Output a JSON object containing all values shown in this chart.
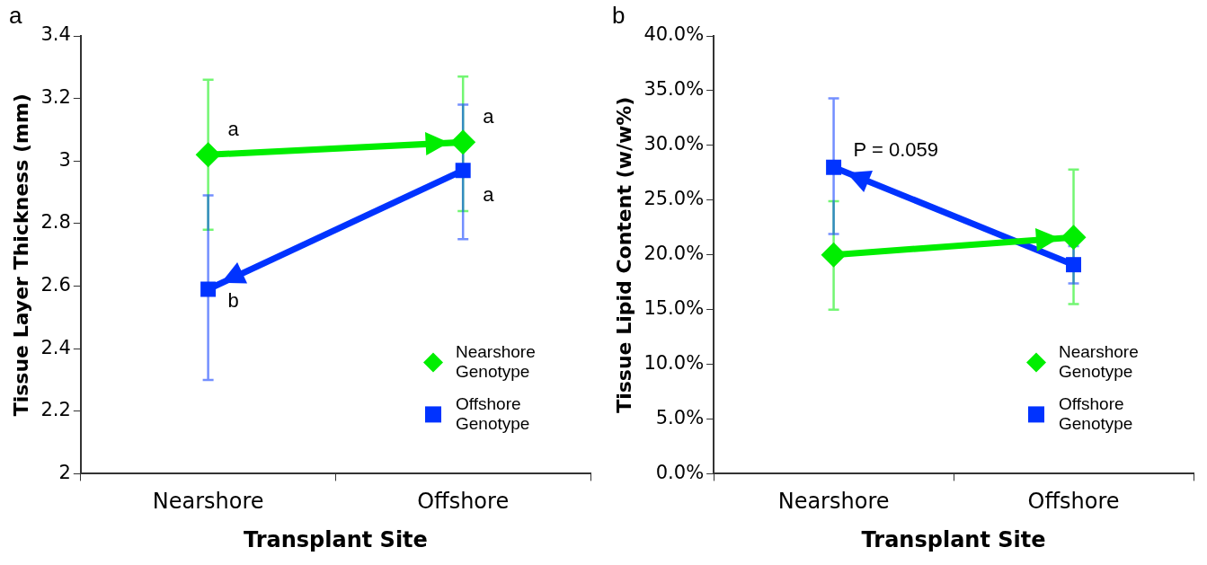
{
  "chart_data": [
    {
      "type": "line",
      "title": "a",
      "xlabel": "Transplant Site",
      "ylabel": "Tissue Layer Thickness (mm)",
      "categories": [
        "Nearshore",
        "Offshore"
      ],
      "series": [
        {
          "name": "Nearshore Genotype",
          "color": "#00ee00",
          "marker": "diamond",
          "values": [
            3.02,
            3.06
          ],
          "errors": [
            [
              2.78,
              3.26
            ],
            [
              2.84,
              3.27
            ]
          ]
        },
        {
          "name": "Offshore Genotype",
          "color": "#0033ff",
          "marker": "square",
          "values": [
            2.59,
            2.97
          ],
          "errors": [
            [
              2.3,
              2.89
            ],
            [
              2.75,
              3.18
            ]
          ]
        }
      ],
      "ylim": [
        2,
        3.4
      ],
      "yticks": [
        2,
        2.2,
        2.4,
        2.6,
        2.8,
        3,
        3.2,
        3.4
      ],
      "grid": false,
      "legend": "bottom right",
      "annotations": [
        {
          "text": "a",
          "x": "Nearshore",
          "y": 3.1
        },
        {
          "text": "a",
          "x": "Offshore",
          "y": 3.14
        },
        {
          "text": "a",
          "x": "Offshore",
          "y": 2.89
        },
        {
          "text": "b",
          "x": "Nearshore",
          "y": 2.55
        }
      ]
    },
    {
      "type": "line",
      "title": "b",
      "xlabel": "Transplant Site",
      "ylabel": "Tissue Lipid Content (w/w%)",
      "categories": [
        "Nearshore",
        "Offshore"
      ],
      "series": [
        {
          "name": "Nearshore Genotype",
          "color": "#00ee00",
          "marker": "diamond",
          "values": [
            20.0,
            21.6
          ],
          "errors": [
            [
              15.0,
              24.9
            ],
            [
              15.5,
              27.8
            ]
          ]
        },
        {
          "name": "Offshore Genotype",
          "color": "#0033ff",
          "marker": "square",
          "values": [
            28.0,
            19.1
          ],
          "errors": [
            [
              21.9,
              34.3
            ],
            [
              17.4,
              20.8
            ]
          ]
        }
      ],
      "ylim": [
        0,
        40
      ],
      "yticks": [
        {
          "value": 0,
          "label": "0.0%"
        },
        {
          "value": 5,
          "label": "5.0%"
        },
        {
          "value": 10,
          "label": "10.0%"
        },
        {
          "value": 15,
          "label": "15.0%"
        },
        {
          "value": 20,
          "label": "20.0%"
        },
        {
          "value": 25,
          "label": "25.0%"
        },
        {
          "value": 30,
          "label": "30.0%"
        },
        {
          "value": 35,
          "label": "35.0%"
        },
        {
          "value": 40,
          "label": "40.0%"
        }
      ],
      "grid": false,
      "legend": "bottom right",
      "annotations": [
        {
          "text": "P = 0.059",
          "x": "Nearshore",
          "y": 29.5
        }
      ]
    }
  ]
}
